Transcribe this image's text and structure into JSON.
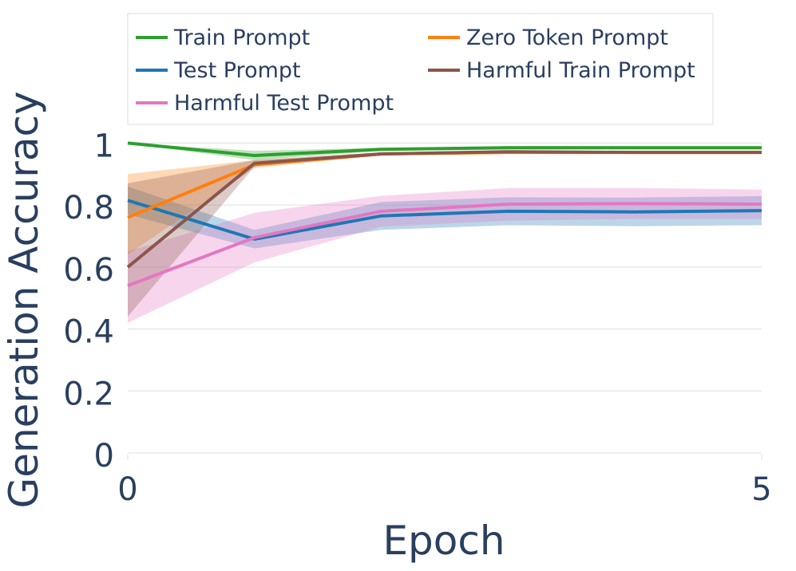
{
  "chart_data": {
    "type": "line",
    "xlabel": "Epoch",
    "ylabel": "Generation Accuracy",
    "xlim": [
      0,
      5
    ],
    "ylim": [
      0,
      1.05
    ],
    "x": [
      0,
      1,
      2,
      3,
      4,
      5
    ],
    "xticks": [
      0,
      5
    ],
    "xtick_labels": [
      "0",
      "5"
    ],
    "yticks": [
      0,
      0.2,
      0.4,
      0.6,
      0.8,
      1
    ],
    "ytick_labels": [
      "0",
      "0.2",
      "0.4",
      "0.6",
      "0.8",
      "1"
    ],
    "grid": true,
    "legend": "top, outside plot, two columns",
    "series": [
      {
        "name": "Train Prompt",
        "color": "#2ca02c",
        "values": [
          1.0,
          0.96,
          0.98,
          0.985,
          0.985,
          0.985
        ],
        "lower": [
          1.0,
          0.945,
          0.975,
          0.98,
          0.98,
          0.98
        ],
        "upper": [
          1.0,
          0.975,
          0.985,
          0.99,
          0.99,
          0.99
        ]
      },
      {
        "name": "Test Prompt",
        "color": "#1f77b4",
        "values": [
          0.815,
          0.69,
          0.765,
          0.78,
          0.778,
          0.782
        ],
        "lower": [
          0.77,
          0.66,
          0.72,
          0.735,
          0.732,
          0.735
        ],
        "upper": [
          0.86,
          0.72,
          0.81,
          0.825,
          0.824,
          0.829
        ]
      },
      {
        "name": "Harmful Test Prompt",
        "color": "#e377c2",
        "values": [
          0.54,
          0.695,
          0.78,
          0.803,
          0.805,
          0.803
        ],
        "lower": [
          0.42,
          0.615,
          0.73,
          0.75,
          0.755,
          0.755
        ],
        "upper": [
          0.65,
          0.775,
          0.83,
          0.855,
          0.855,
          0.85
        ]
      },
      {
        "name": "Zero Token Prompt",
        "color": "#ff7f0e",
        "values": [
          0.76,
          0.93,
          0.965,
          0.97,
          0.97,
          0.97
        ],
        "lower": [
          0.64,
          0.92,
          0.96,
          0.965,
          0.965,
          0.965
        ],
        "upper": [
          0.9,
          0.945,
          0.97,
          0.975,
          0.975,
          0.975
        ]
      },
      {
        "name": "Harmful Train Prompt",
        "color": "#8c564b",
        "values": [
          0.6,
          0.935,
          0.965,
          0.972,
          0.97,
          0.97
        ],
        "lower": [
          0.44,
          0.925,
          0.96,
          0.967,
          0.965,
          0.965
        ],
        "upper": [
          0.87,
          0.945,
          0.97,
          0.977,
          0.975,
          0.975
        ]
      }
    ]
  }
}
